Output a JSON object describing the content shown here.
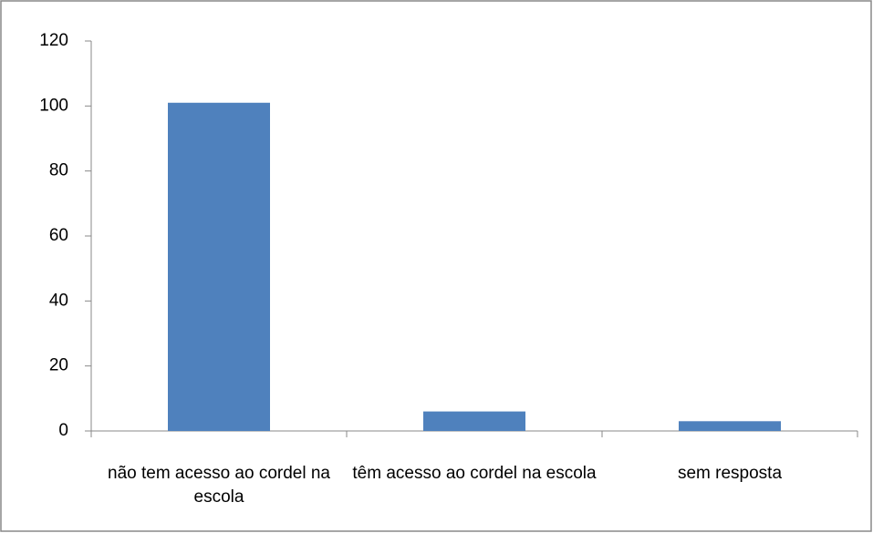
{
  "chart_data": {
    "type": "bar",
    "categories": [
      "não tem acesso ao cordel na escola",
      "têm acesso ao cordel na escola",
      "sem resposta"
    ],
    "values": [
      101,
      6,
      3
    ],
    "color": "#4f81bd",
    "ylim": [
      0,
      120
    ],
    "yticks": [
      0,
      20,
      40,
      60,
      80,
      100,
      120
    ],
    "grid": false
  }
}
